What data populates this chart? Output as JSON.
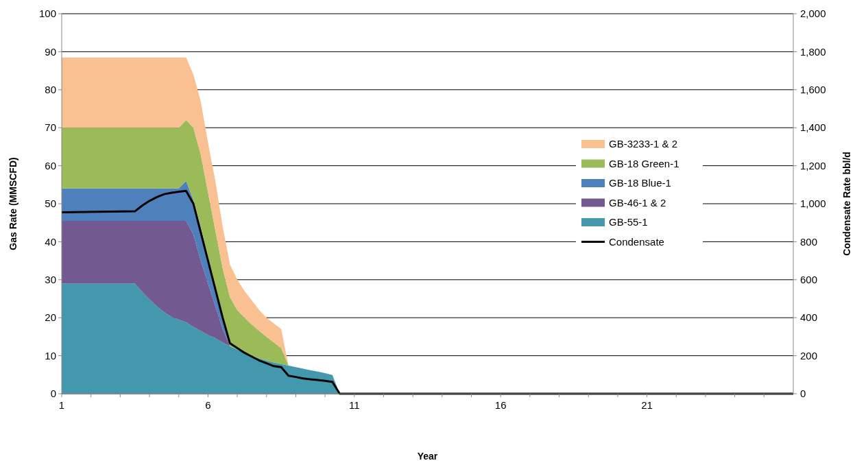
{
  "chart_data": {
    "type": "area",
    "stacked": true,
    "xlabel": "Year",
    "ylabel": "Gas Rate (MMSCFD)",
    "y2label": "Condensate Rate bbl/d",
    "x": [
      1,
      3.5,
      3.75,
      4,
      4.25,
      4.5,
      4.75,
      5,
      5.25,
      5.5,
      5.75,
      6,
      6.25,
      6.5,
      6.75,
      7,
      7.25,
      7.5,
      7.75,
      8,
      8.25,
      8.5,
      8.75,
      9,
      9.25,
      9.5,
      9.75,
      10,
      10.25,
      10.5,
      26
    ],
    "series": [
      {
        "name": "GB-55-1",
        "color": "#4398ae",
        "values": [
          29,
          29,
          26.8,
          24.8,
          23,
          21.5,
          20.2,
          19.5,
          18.8,
          17.6,
          16.5,
          15.5,
          14.6,
          13.5,
          12.5,
          11.6,
          10.8,
          10,
          9.3,
          8.7,
          8.2,
          7.8,
          7.4,
          7,
          6.6,
          6.2,
          5.8,
          5.4,
          4.9,
          0,
          0
        ]
      },
      {
        "name": "GB-46-1 & 2",
        "color": "#72598f",
        "values": [
          16.5,
          16.5,
          18.7,
          20.7,
          22.5,
          24,
          25.3,
          26,
          26.7,
          24.3,
          18.5,
          13.5,
          8.4,
          3.5,
          0,
          0,
          0,
          0,
          0,
          0,
          0,
          0,
          0,
          0,
          0,
          0,
          0,
          0,
          0,
          0,
          0
        ]
      },
      {
        "name": "GB-18 Blue-1",
        "color": "#4e80bc",
        "values": [
          8.5,
          8.5,
          8.5,
          8.5,
          8.5,
          8.5,
          8.5,
          8.5,
          10.5,
          9.1,
          9,
          7,
          5,
          3,
          0,
          0,
          0,
          0,
          0,
          0,
          0,
          0,
          0,
          0,
          0,
          0,
          0,
          0,
          0,
          0,
          0
        ]
      },
      {
        "name": "GB-18 Green-1",
        "color": "#9bbb59",
        "values": [
          16,
          16,
          16,
          16,
          16,
          16,
          16,
          16,
          16,
          19,
          19,
          17,
          15,
          13,
          12.9,
          10.4,
          9.2,
          8.2,
          7.2,
          6.3,
          5.3,
          4.2,
          0,
          0,
          0,
          0,
          0,
          0,
          0,
          0,
          0
        ]
      },
      {
        "name": "GB-3233-1 & 2",
        "color": "#f9c191",
        "values": [
          18.5,
          18.5,
          18.5,
          18.5,
          18.5,
          18.5,
          18.5,
          18.5,
          16.5,
          14,
          14,
          13,
          13,
          11,
          8.6,
          8,
          7,
          6.3,
          5.5,
          5,
          5,
          5,
          0,
          0,
          0,
          0,
          0,
          0,
          0,
          0,
          0
        ]
      },
      {
        "name": "Condensate",
        "type": "line",
        "axis": "y2",
        "color": "#000000",
        "values": [
          955,
          960,
          990,
          1015,
          1035,
          1050,
          1058,
          1063,
          1068,
          1000,
          850,
          700,
          550,
          400,
          265,
          240,
          215,
          195,
          175,
          160,
          145,
          140,
          95,
          88,
          80,
          76,
          72,
          68,
          62,
          0,
          0
        ]
      }
    ],
    "xlim": [
      1,
      26
    ],
    "xticks": [
      1,
      {
        "value": 2,
        "label": null
      },
      {
        "value": 3,
        "label": null
      },
      {
        "value": 4,
        "label": null
      },
      {
        "value": 5,
        "label": null
      },
      6,
      {
        "value": 7,
        "label": null
      },
      {
        "value": 8,
        "label": null
      },
      {
        "value": 9,
        "label": null
      },
      {
        "value": 10,
        "label": null
      },
      11,
      {
        "value": 12,
        "label": null
      },
      {
        "value": 13,
        "label": null
      },
      {
        "value": 14,
        "label": null
      },
      {
        "value": 15,
        "label": null
      },
      16,
      {
        "value": 17,
        "label": null
      },
      {
        "value": 18,
        "label": null
      },
      {
        "value": 19,
        "label": null
      },
      {
        "value": 20,
        "label": null
      },
      21,
      {
        "value": 22,
        "label": null
      },
      {
        "value": 23,
        "label": null
      },
      {
        "value": 24,
        "label": null
      },
      {
        "value": 25,
        "label": null
      }
    ],
    "ylim": [
      0,
      100
    ],
    "yticks": [
      0,
      10,
      20,
      30,
      40,
      50,
      60,
      70,
      80,
      90,
      100
    ],
    "y2lim": [
      0,
      2000
    ],
    "y2ticks": [
      0,
      200,
      400,
      600,
      800,
      {
        "value": 1000,
        "label": "1,000"
      },
      {
        "value": 1200,
        "label": "1,200"
      },
      {
        "value": 1400,
        "label": "1,400"
      },
      {
        "value": 1600,
        "label": "1,600"
      },
      {
        "value": 1800,
        "label": "1,800"
      },
      {
        "value": 2000,
        "label": "2,000"
      }
    ],
    "grid": "y",
    "legend": "right"
  }
}
